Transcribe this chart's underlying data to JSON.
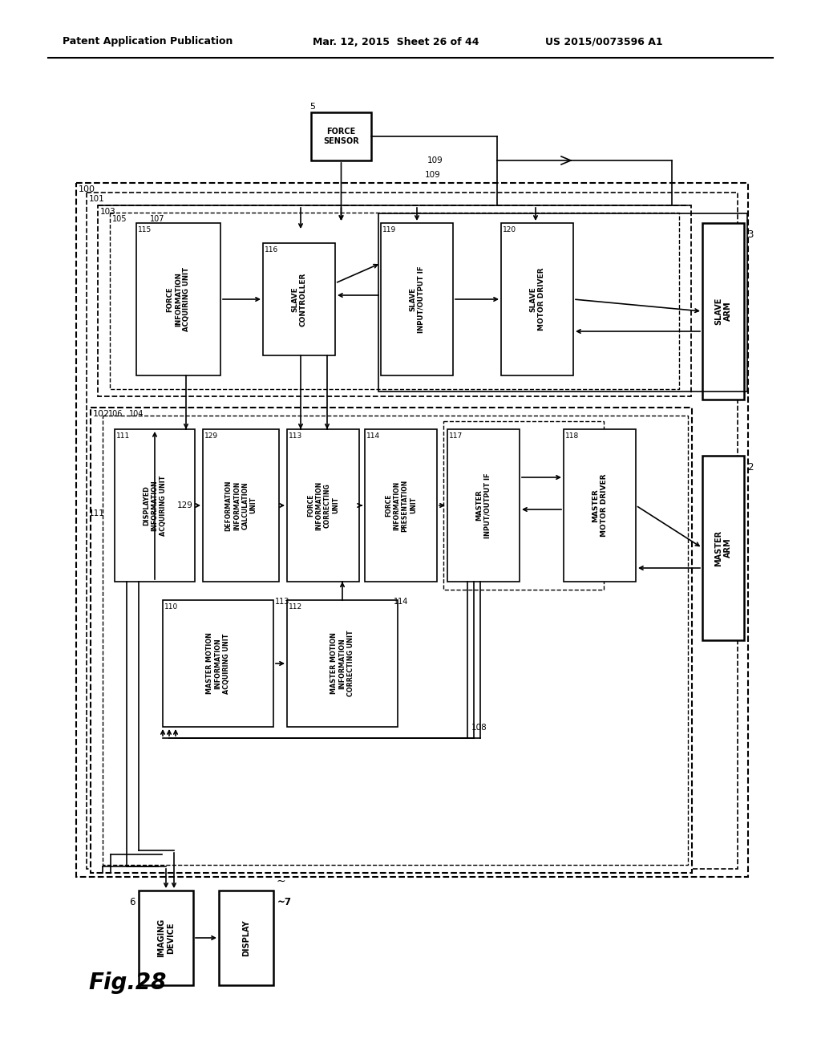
{
  "header_left": "Patent Application Publication",
  "header_mid": "Mar. 12, 2015  Sheet 26 of 44",
  "header_right": "US 2015/0073596 A1",
  "fig_label": "Fig.28",
  "bg_color": "#ffffff"
}
